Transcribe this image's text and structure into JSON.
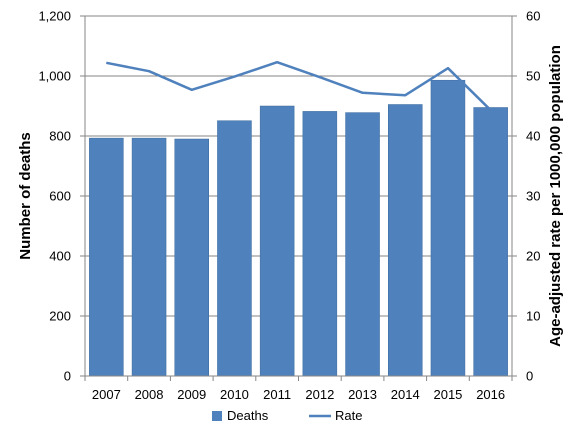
{
  "chart_data": {
    "type": "bar",
    "categories": [
      "2007",
      "2008",
      "2009",
      "2010",
      "2011",
      "2012",
      "2013",
      "2014",
      "2015",
      "2016"
    ],
    "series": [
      {
        "name": "Deaths",
        "type": "bar",
        "axis": "left",
        "color": "#4F81BD",
        "values": [
          793,
          793,
          790,
          851,
          900,
          882,
          878,
          905,
          986,
          895
        ]
      },
      {
        "name": "Rate",
        "type": "line",
        "axis": "right",
        "color": "#4F81BD",
        "values": [
          52.2,
          50.8,
          47.7,
          49.9,
          52.3,
          49.8,
          47.2,
          46.8,
          51.3,
          44.3
        ]
      }
    ],
    "ylabel": "Number of deaths",
    "ylabel_right": "Age-adjusted rate per 1000,000 population",
    "ylim": [
      0,
      1200
    ],
    "ylim_right": [
      0,
      60
    ],
    "yticks": [
      "0",
      "200",
      "400",
      "600",
      "800",
      "1,000",
      "1,200"
    ],
    "yticks_right": [
      "0",
      "10",
      "20",
      "30",
      "40",
      "50",
      "60"
    ],
    "grid": true,
    "legend_position": "bottom"
  }
}
